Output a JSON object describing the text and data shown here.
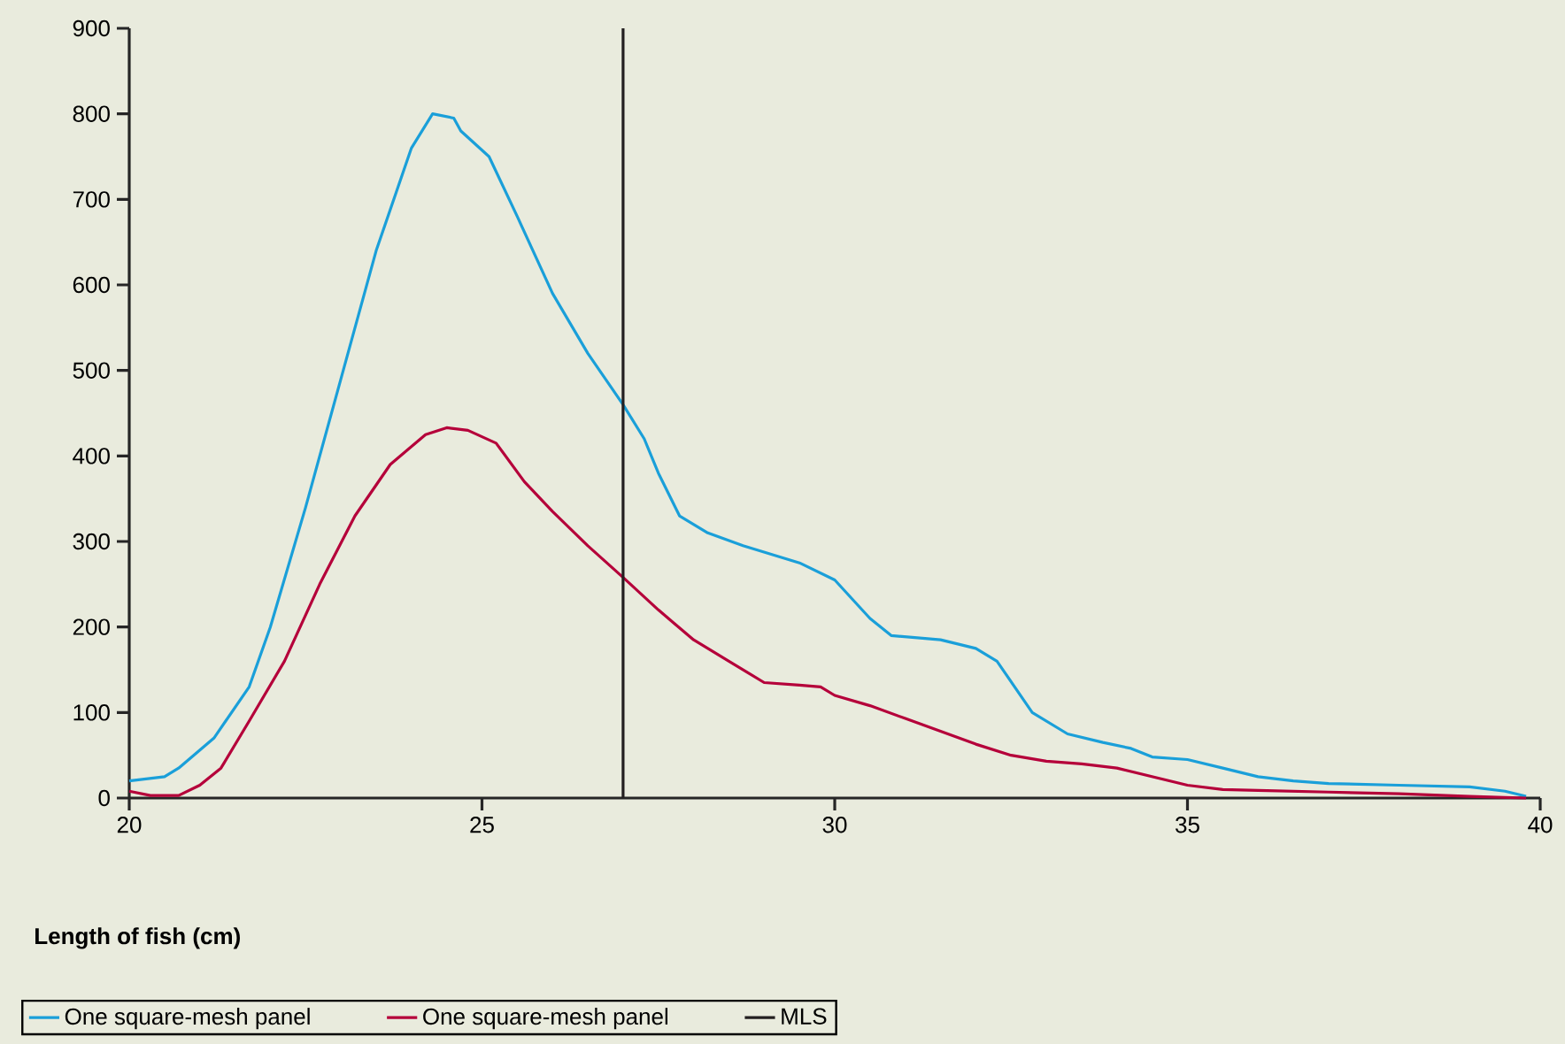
{
  "chart_data": {
    "type": "line",
    "xlabel": "Length of fish (cm)",
    "xlim": [
      20,
      40
    ],
    "xticks": [
      20,
      25,
      30,
      35,
      40
    ],
    "ylim": [
      0,
      900
    ],
    "yticks": [
      0,
      100,
      200,
      300,
      400,
      500,
      600,
      700,
      800,
      900
    ],
    "legend": "bottom",
    "series": [
      {
        "name": "One square-mesh panel",
        "color": "#1a9fd9",
        "x": [
          20,
          20.5,
          20.7,
          21.2,
          21.7,
          22,
          22.5,
          23,
          23.5,
          24,
          24.3,
          24.6,
          24.7,
          25.1,
          25.5,
          26,
          26.5,
          27,
          27.3,
          27.5,
          27.8,
          28.2,
          28.7,
          29.5,
          30,
          30.5,
          30.8,
          31.5,
          32,
          32.3,
          32.8,
          33.3,
          33.8,
          34.2,
          34.5,
          35,
          35.5,
          36,
          36.5,
          37,
          38,
          39,
          39.5,
          39.8
        ],
        "values": [
          20,
          25,
          35,
          70,
          130,
          200,
          340,
          490,
          640,
          760,
          800,
          795,
          780,
          750,
          680,
          590,
          520,
          460,
          420,
          380,
          330,
          310,
          295,
          275,
          255,
          210,
          190,
          185,
          175,
          160,
          100,
          75,
          65,
          58,
          48,
          45,
          35,
          25,
          20,
          17,
          15,
          13,
          8,
          2
        ]
      },
      {
        "name": "One square-mesh panel",
        "color": "#b5003a",
        "x": [
          20,
          20.3,
          20.7,
          21,
          21.3,
          21.7,
          22.2,
          22.7,
          23.2,
          23.7,
          24.2,
          24.5,
          24.8,
          25.2,
          25.6,
          26,
          26.5,
          27,
          27.5,
          28,
          28.5,
          29,
          29.5,
          29.8,
          30,
          30.5,
          31,
          31.5,
          32,
          32.5,
          33,
          33.5,
          34,
          34.5,
          35,
          35.5,
          36,
          37,
          38,
          39,
          39.8
        ],
        "values": [
          8,
          3,
          3,
          15,
          35,
          90,
          160,
          250,
          330,
          390,
          425,
          433,
          430,
          415,
          370,
          335,
          295,
          258,
          220,
          185,
          160,
          135,
          132,
          130,
          120,
          108,
          93,
          78,
          63,
          50,
          43,
          40,
          35,
          25,
          15,
          10,
          9,
          7,
          5,
          2,
          0
        ]
      }
    ],
    "ref_lines": [
      {
        "axis": "x",
        "value": 27,
        "label": "MLS",
        "color": "#231f20"
      }
    ]
  }
}
